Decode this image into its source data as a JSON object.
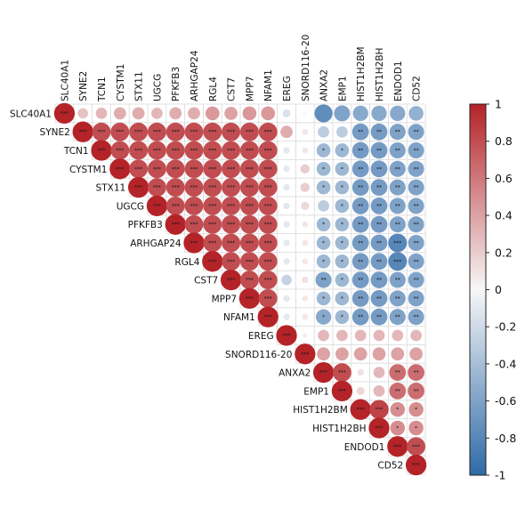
{
  "chart_data": {
    "type": "heatmap",
    "layout": "upper-triangle",
    "genes": [
      "SLC40A1",
      "SYNE2",
      "TCN1",
      "CYSTM1",
      "STX11",
      "UGCG",
      "PFKFB3",
      "ARHGAP24",
      "RGL4",
      "CST7",
      "MPP7",
      "NFAM1",
      "EREG",
      "SNORD116-20",
      "ANXA2",
      "EMP1",
      "HIST1H2BM",
      "HIST1H2BH",
      "ENDOD1",
      "CD52"
    ],
    "color_scale": {
      "min": -1,
      "max": 1,
      "negative": "#2f6aa8",
      "zero": "#f7f7f7",
      "positive": "#b42328"
    },
    "colorbar_ticks": [
      "1",
      "0.8",
      "0.6",
      "0.4",
      "0.2",
      "0",
      "-0.2",
      "-0.4",
      "-0.6",
      "-0.8",
      "-1"
    ],
    "colorbar_tick_values": [
      1,
      0.8,
      0.6,
      0.4,
      0.2,
      0,
      -0.2,
      -0.4,
      -0.6,
      -0.8,
      -1
    ],
    "blocks": [
      {
        "rows": [
          0,
          1,
          2,
          3,
          4,
          5,
          6,
          7,
          8,
          9,
          10,
          11
        ],
        "cols": [
          0,
          1,
          2,
          3,
          4,
          5,
          6,
          7,
          8,
          9,
          10,
          11
        ],
        "value": 0.8,
        "first_row_value": 0.3
      },
      {
        "rows": [
          0,
          1,
          2,
          3,
          4,
          5,
          6,
          7,
          8,
          9,
          10,
          11
        ],
        "cols": [
          12
        ],
        "value": -0.1
      },
      {
        "rows": [
          0,
          1,
          2,
          3,
          4,
          5,
          6,
          7,
          8,
          9,
          10,
          11
        ],
        "cols": [
          13
        ],
        "value": 0.08
      },
      {
        "rows": [
          0,
          1,
          2,
          3,
          4,
          5,
          6,
          7,
          8,
          9,
          10,
          11
        ],
        "cols": [
          14,
          15
        ],
        "value": -0.45
      },
      {
        "rows": [
          0,
          1,
          2,
          3,
          4,
          5,
          6,
          7,
          8,
          9,
          10,
          11
        ],
        "cols": [
          16,
          17
        ],
        "value": -0.65
      },
      {
        "rows": [
          0,
          1,
          2,
          3,
          4,
          5,
          6,
          7,
          8,
          9,
          10,
          11
        ],
        "cols": [
          18,
          19
        ],
        "value": -0.6
      },
      {
        "rows": [
          12
        ],
        "cols": [
          13
        ],
        "value": 0.05
      },
      {
        "rows": [
          12
        ],
        "cols": [
          14,
          15,
          16,
          17,
          18,
          19
        ],
        "value": 0.3
      },
      {
        "rows": [
          13
        ],
        "cols": [
          14,
          15,
          16,
          17,
          18,
          19
        ],
        "value": 0.4
      },
      {
        "rows": [
          14,
          15
        ],
        "cols": [
          14,
          15
        ],
        "value": 0.8
      },
      {
        "rows": [
          14,
          15
        ],
        "cols": [
          16,
          17
        ],
        "value": 0.3
      },
      {
        "rows": [
          14,
          15
        ],
        "cols": [
          18,
          19
        ],
        "value": 0.65
      },
      {
        "rows": [
          16,
          17
        ],
        "cols": [
          16,
          17
        ],
        "value": 0.85
      },
      {
        "rows": [
          16,
          17
        ],
        "cols": [
          18,
          19
        ],
        "value": 0.5
      },
      {
        "rows": [
          18,
          19
        ],
        "cols": [
          18,
          19
        ],
        "value": 0.8
      }
    ],
    "overrides": [
      {
        "row": 0,
        "col": 1,
        "value": 0.25
      },
      {
        "row": 0,
        "col": 2,
        "value": 0.3
      },
      {
        "row": 0,
        "col": 3,
        "value": 0.35
      },
      {
        "row": 0,
        "col": 4,
        "value": 0.35
      },
      {
        "row": 0,
        "col": 5,
        "value": 0.3
      },
      {
        "row": 0,
        "col": 6,
        "value": 0.35
      },
      {
        "row": 0,
        "col": 7,
        "value": 0.35
      },
      {
        "row": 0,
        "col": 8,
        "value": 0.45
      },
      {
        "row": 0,
        "col": 9,
        "value": 0.4
      },
      {
        "row": 0,
        "col": 10,
        "value": 0.45
      },
      {
        "row": 0,
        "col": 11,
        "value": 0.45
      },
      {
        "row": 0,
        "col": 12,
        "value": -0.15
      },
      {
        "row": 0,
        "col": 13,
        "value": 0.0
      },
      {
        "row": 0,
        "col": 14,
        "value": -0.75
      },
      {
        "row": 0,
        "col": 15,
        "value": -0.6
      },
      {
        "row": 0,
        "col": 16,
        "value": -0.55
      },
      {
        "row": 0,
        "col": 17,
        "value": -0.55
      },
      {
        "row": 0,
        "col": 18,
        "value": -0.55
      },
      {
        "row": 0,
        "col": 19,
        "value": -0.5
      },
      {
        "row": 1,
        "col": 12,
        "value": 0.35
      },
      {
        "row": 1,
        "col": 14,
        "value": -0.3
      },
      {
        "row": 1,
        "col": 15,
        "value": -0.3
      },
      {
        "row": 3,
        "col": 13,
        "value": 0.2
      },
      {
        "row": 4,
        "col": 13,
        "value": 0.2
      },
      {
        "row": 5,
        "col": 13,
        "value": 0.15
      },
      {
        "row": 5,
        "col": 14,
        "value": -0.3
      },
      {
        "row": 7,
        "col": 18,
        "value": -0.8
      },
      {
        "row": 8,
        "col": 18,
        "value": -0.8
      },
      {
        "row": 9,
        "col": 12,
        "value": -0.25
      },
      {
        "row": 9,
        "col": 13,
        "value": 0.1
      },
      {
        "row": 9,
        "col": 14,
        "value": -0.6
      },
      {
        "row": 11,
        "col": 14,
        "value": -0.55
      },
      {
        "row": 14,
        "col": 16,
        "value": 0.1
      },
      {
        "row": 15,
        "col": 16,
        "value": 0.15
      }
    ]
  }
}
